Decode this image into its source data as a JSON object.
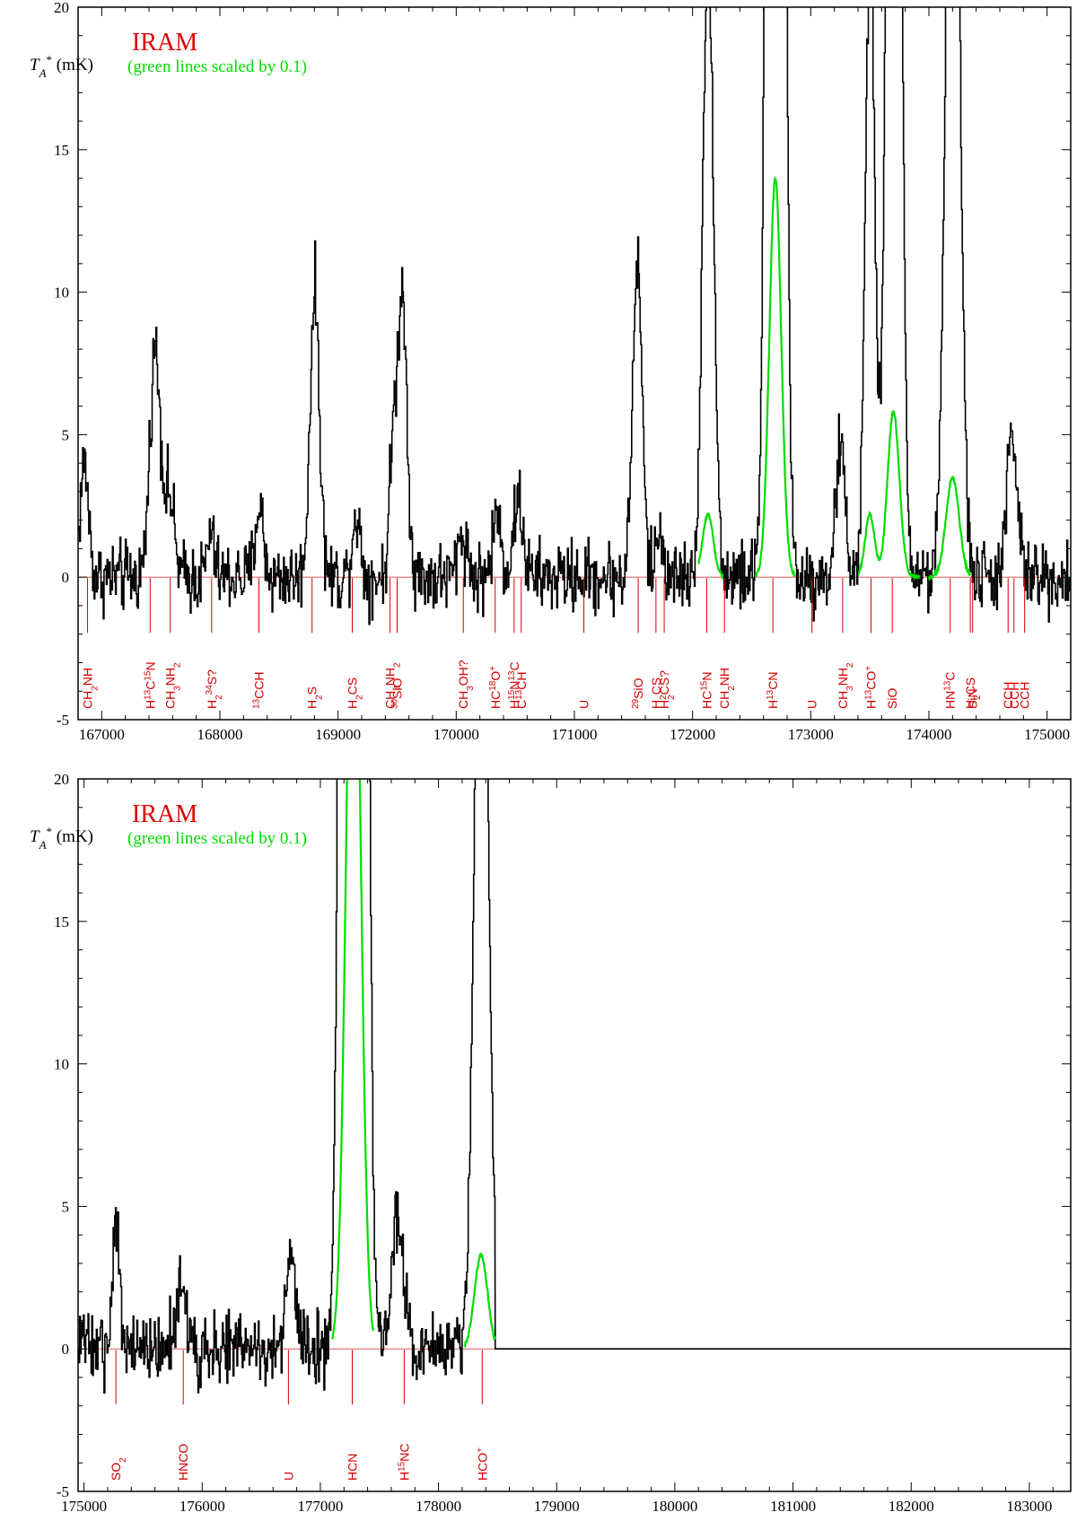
{
  "colors": {
    "spectrum": "#000000",
    "scaled": "#00dd00",
    "labels": "#d40000",
    "baseline": "#e04040"
  },
  "chart_data": [
    {
      "type": "line",
      "title": "IRAM",
      "note": "(green lines scaled by 0.1)",
      "ylabel": "T_A* (mK)",
      "xlim": [
        166800,
        175200
      ],
      "ylim": [
        -5,
        20
      ],
      "xticks": [
        "167000",
        "168000",
        "169000",
        "170000",
        "171000",
        "172000",
        "173000",
        "174000",
        "175000"
      ],
      "yticks": [
        "-5",
        "0",
        "5",
        "10",
        "15",
        "20"
      ],
      "series": [
        {
          "style": "spectrum",
          "peaks": [
            {
              "x": 166850,
              "y": 4.0,
              "w": 35
            },
            {
              "x": 167450,
              "y": 8.0,
              "w": 45
            },
            {
              "x": 167570,
              "y": 2.8,
              "w": 40
            },
            {
              "x": 167920,
              "y": 1.5,
              "w": 30
            },
            {
              "x": 168330,
              "y": 2.5,
              "w": 35
            },
            {
              "x": 168800,
              "y": 10.0,
              "w": 40
            },
            {
              "x": 169150,
              "y": 2.2,
              "w": 35
            },
            {
              "x": 169460,
              "y": 4.0,
              "w": 30
            },
            {
              "x": 169540,
              "y": 10.0,
              "w": 40
            },
            {
              "x": 170050,
              "y": 1.5,
              "w": 40
            },
            {
              "x": 170340,
              "y": 2.2,
              "w": 35
            },
            {
              "x": 170520,
              "y": 2.7,
              "w": 40
            },
            {
              "x": 171530,
              "y": 11.0,
              "w": 40
            },
            {
              "x": 171720,
              "y": 1.5,
              "w": 35
            },
            {
              "x": 172130,
              "y": 22.0,
              "w": 45
            },
            {
              "x": 172700,
              "y": 140.0,
              "w": 50
            },
            {
              "x": 173250,
              "y": 4.5,
              "w": 40
            },
            {
              "x": 173500,
              "y": 22.0,
              "w": 40
            },
            {
              "x": 173700,
              "y": 58.0,
              "w": 50
            },
            {
              "x": 174200,
              "y": 35.0,
              "w": 55
            },
            {
              "x": 174700,
              "y": 4.8,
              "w": 45
            }
          ]
        },
        {
          "style": "scaled",
          "segments": [
            [
              172050,
              172260
            ],
            [
              172530,
              172870
            ],
            [
              173400,
              173920
            ],
            [
              174000,
              174350
            ]
          ],
          "peaks": [
            {
              "x": 172130,
              "y": 2.2,
              "w": 45
            },
            {
              "x": 172700,
              "y": 14.0,
              "w": 50
            },
            {
              "x": 173500,
              "y": 2.2,
              "w": 40
            },
            {
              "x": 173700,
              "y": 5.8,
              "w": 50
            },
            {
              "x": 174200,
              "y": 3.5,
              "w": 55
            }
          ]
        }
      ],
      "line_markers": [
        {
          "x": 166880,
          "label": "CH2NH"
        },
        {
          "x": 167410,
          "label": "H13C15N"
        },
        {
          "x": 167580,
          "label": "CH3NH2"
        },
        {
          "x": 167930,
          "label": "H234S?"
        },
        {
          "x": 168330,
          "label": "13CCH"
        },
        {
          "x": 168780,
          "label": "H2S"
        },
        {
          "x": 169120,
          "label": "H2CS"
        },
        {
          "x": 169440,
          "label": "CH3NH2"
        },
        {
          "x": 169500,
          "label": "30SiO"
        },
        {
          "x": 170060,
          "label": "CH3OH?"
        },
        {
          "x": 170330,
          "label": "HC18O+"
        },
        {
          "x": 170490,
          "label": "H15N13C"
        },
        {
          "x": 170550,
          "label": "C13CH"
        },
        {
          "x": 171080,
          "label": "U"
        },
        {
          "x": 171540,
          "label": "29SiO"
        },
        {
          "x": 171690,
          "label": "H2CS"
        },
        {
          "x": 171760,
          "label": "H2CS?"
        },
        {
          "x": 172120,
          "label": "HC15N"
        },
        {
          "x": 172270,
          "label": "CH2NH"
        },
        {
          "x": 172680,
          "label": "H13CN"
        },
        {
          "x": 173010,
          "label": "U"
        },
        {
          "x": 173270,
          "label": "CH3NH2"
        },
        {
          "x": 173510,
          "label": "H13CO+"
        },
        {
          "x": 173690,
          "label": "SiO"
        },
        {
          "x": 174180,
          "label": "HN13C"
        },
        {
          "x": 174350,
          "label": "H2CS"
        },
        {
          "x": 174370,
          "label": "SiN"
        },
        {
          "x": 174670,
          "label": "CCH"
        },
        {
          "x": 174720,
          "label": "CCH"
        },
        {
          "x": 174810,
          "label": "CCH"
        }
      ]
    },
    {
      "type": "line",
      "title": "IRAM",
      "note": "(green lines scaled by 0.1)",
      "ylabel": "T_A* (mK)",
      "xlim": [
        174950,
        183350
      ],
      "ylim": [
        -5,
        20
      ],
      "data_end": 178480,
      "xticks": [
        "175000",
        "176000",
        "177000",
        "178000",
        "179000",
        "180000",
        "181000",
        "182000",
        "183000"
      ],
      "yticks": [
        "-5",
        "0",
        "5",
        "10",
        "15",
        "20"
      ],
      "series": [
        {
          "style": "spectrum",
          "peaks": [
            {
              "x": 175270,
              "y": 4.8,
              "w": 25
            },
            {
              "x": 175820,
              "y": 2.5,
              "w": 40
            },
            {
              "x": 176750,
              "y": 3.0,
              "w": 40
            },
            {
              "x": 177280,
              "y": 300.0,
              "w": 60
            },
            {
              "x": 177650,
              "y": 4.5,
              "w": 50
            },
            {
              "x": 178360,
              "y": 33.0,
              "w": 55
            }
          ]
        },
        {
          "style": "scaled",
          "segments": [
            [
              177100,
              177450
            ],
            [
              178220,
              178480
            ]
          ],
          "peaks": [
            {
              "x": 177280,
              "y": 30.0,
              "w": 60
            },
            {
              "x": 178360,
              "y": 3.3,
              "w": 55
            }
          ]
        }
      ],
      "line_markers": [
        {
          "x": 175270,
          "label": "SO2"
        },
        {
          "x": 175840,
          "label": "HNCO"
        },
        {
          "x": 176730,
          "label": "U"
        },
        {
          "x": 177270,
          "label": "HCN"
        },
        {
          "x": 177710,
          "label": "H15NC"
        },
        {
          "x": 178370,
          "label": "HCO+"
        }
      ]
    }
  ]
}
